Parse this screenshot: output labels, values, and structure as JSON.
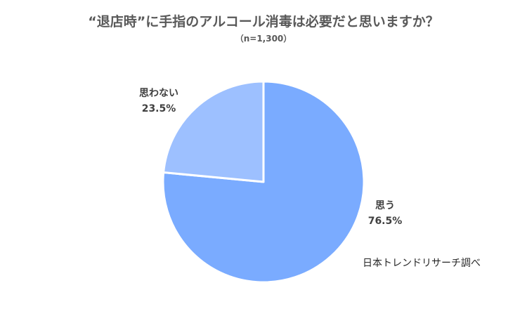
{
  "chart_data": {
    "type": "pie",
    "title": "“退店時”に手指のアルコール消毒は必要だと思いますか？",
    "subtitle": "（n=1,300）",
    "slices": [
      {
        "label": "思う",
        "value": 76.5,
        "value_label": "76.5%",
        "color": "#7aabff"
      },
      {
        "label": "思わない",
        "value": 23.5,
        "value_label": "23.5%",
        "color": "#9dc0ff"
      }
    ],
    "start": "12 o'clock",
    "direction": "clockwise",
    "source": "日本トレンドリサーチ調べ"
  }
}
